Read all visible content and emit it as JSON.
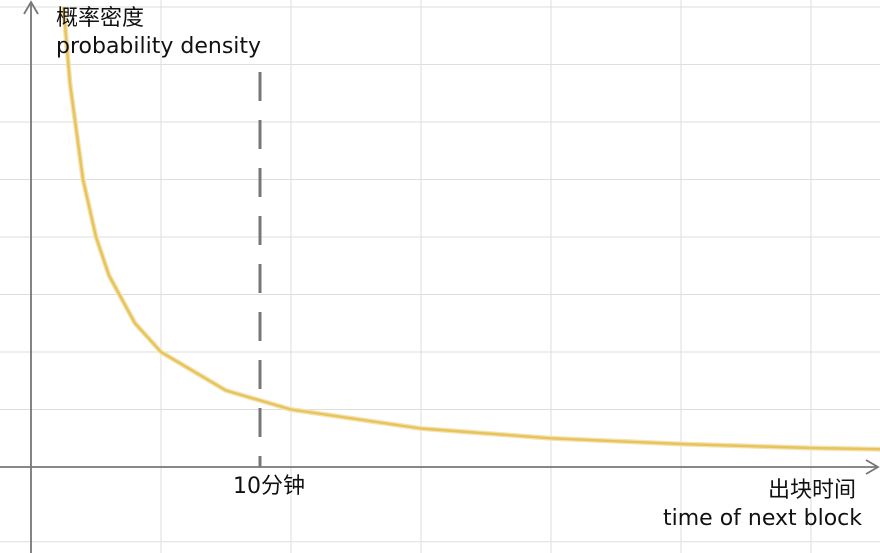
{
  "chart_data": {
    "type": "line",
    "ylabel_zh": "概率密度",
    "ylabel_en": "probability density",
    "xlabel_zh": "出块时间",
    "xlabel_en": "time of next block",
    "marker": {
      "label": "10分钟"
    },
    "grid": true,
    "axis_ticks": false,
    "colors": {
      "curve": "#e8c35a",
      "marker": "#777777",
      "grid": "#dedede",
      "axis": "#777777"
    },
    "series": [
      {
        "x": [
          0.25,
          0.3,
          0.4,
          0.5,
          0.6,
          0.8,
          1.0,
          1.5,
          2.0,
          3.0,
          4.0,
          5.0,
          6.0,
          7.0
        ],
        "y": [
          8.0,
          6.67,
          5.0,
          4.0,
          3.33,
          2.5,
          2.0,
          1.33,
          1.0,
          0.67,
          0.5,
          0.4,
          0.33,
          0.29
        ]
      }
    ]
  }
}
